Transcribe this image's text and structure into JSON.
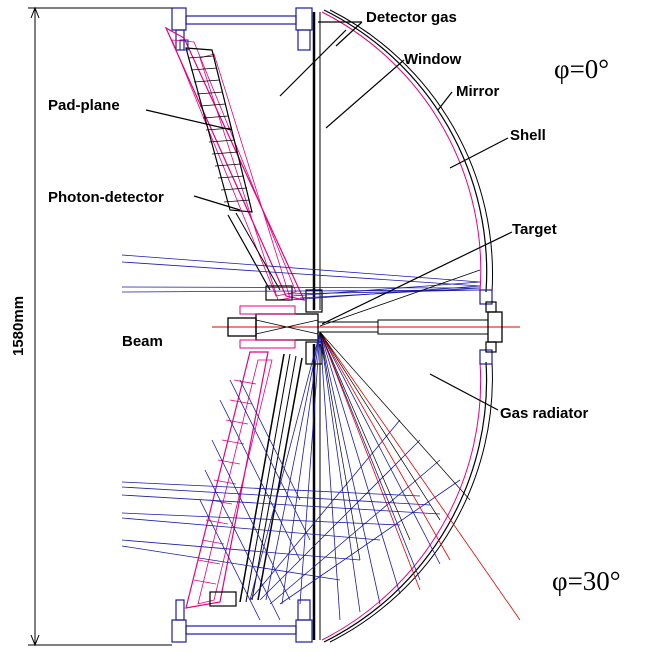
{
  "labels": {
    "detector_gas": "Detector gas",
    "window": "Window",
    "mirror": "Mirror",
    "shell": "Shell",
    "pad_plane": "Pad-plane",
    "photon_detector": "Photon-detector",
    "target": "Target",
    "beam": "Beam",
    "gas_radiator": "Gas radiator"
  },
  "angles": {
    "top": "φ=0°",
    "bottom": "φ=30°"
  },
  "dimension": "1580mm",
  "colors": {
    "magenta": "#e6007e",
    "blue": "#1a1aa6",
    "red": "#e00000",
    "black": "#000000"
  }
}
